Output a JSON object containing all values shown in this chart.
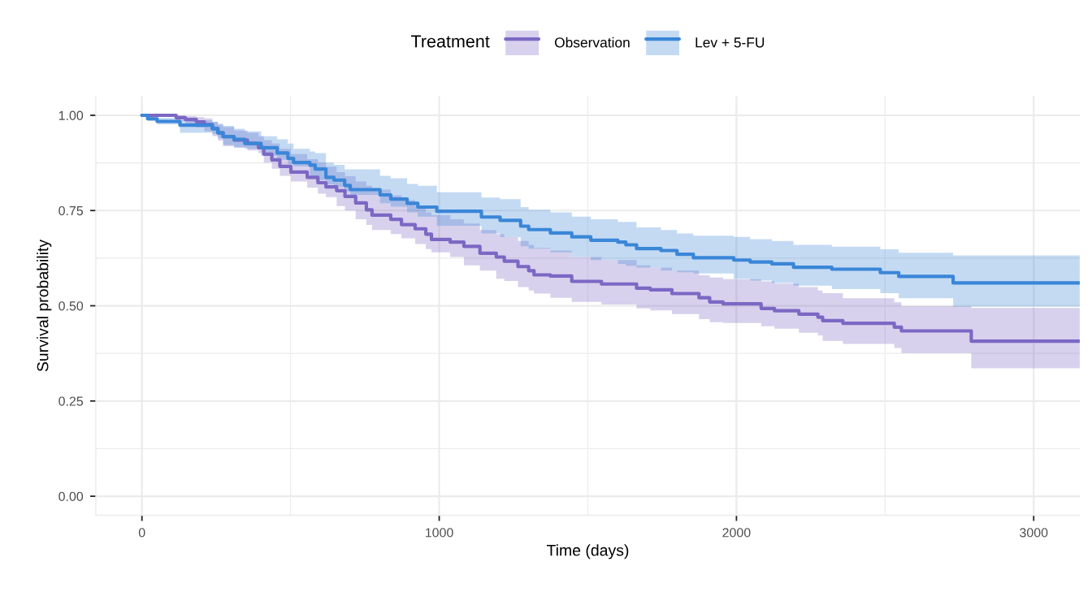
{
  "chart_data": {
    "type": "step",
    "xlabel": "Time (days)",
    "ylabel": "Survival probability",
    "legend_title": "Treatment",
    "series": [
      {
        "name": "Observation",
        "color": "#7b68c4",
        "x": [
          0,
          115,
          146,
          183,
          210,
          237,
          256,
          273,
          310,
          355,
          392,
          410,
          437,
          464,
          501,
          556,
          592,
          619,
          655,
          683,
          719,
          755,
          774,
          837,
          873,
          919,
          955,
          974,
          1037,
          1083,
          1137,
          1192,
          1219,
          1265,
          1301,
          1319,
          1374,
          1446,
          1546,
          1664,
          1710,
          1783,
          1874,
          1910,
          1955,
          2083,
          2128,
          2210,
          2274,
          2290,
          2358,
          2531,
          2555,
          2790,
          3155
        ],
        "values": [
          1.0,
          0.994,
          0.989,
          0.983,
          0.976,
          0.965,
          0.954,
          0.944,
          0.935,
          0.926,
          0.915,
          0.898,
          0.883,
          0.866,
          0.851,
          0.837,
          0.823,
          0.812,
          0.802,
          0.787,
          0.77,
          0.752,
          0.738,
          0.727,
          0.713,
          0.702,
          0.688,
          0.674,
          0.667,
          0.656,
          0.638,
          0.628,
          0.617,
          0.603,
          0.592,
          0.581,
          0.578,
          0.564,
          0.557,
          0.546,
          0.542,
          0.532,
          0.521,
          0.51,
          0.505,
          0.493,
          0.487,
          0.478,
          0.47,
          0.461,
          0.454,
          0.444,
          0.434,
          0.407,
          0.407
        ],
        "lower": [
          1.0,
          0.985,
          0.978,
          0.968,
          0.958,
          0.945,
          0.934,
          0.919,
          0.915,
          0.908,
          0.901,
          0.876,
          0.86,
          0.841,
          0.826,
          0.81,
          0.794,
          0.785,
          0.762,
          0.75,
          0.727,
          0.712,
          0.699,
          0.688,
          0.677,
          0.662,
          0.649,
          0.64,
          0.628,
          0.606,
          0.592,
          0.571,
          0.565,
          0.549,
          0.54,
          0.532,
          0.521,
          0.51,
          0.503,
          0.493,
          0.488,
          0.478,
          0.465,
          0.457,
          0.455,
          0.446,
          0.44,
          0.429,
          0.422,
          0.408,
          0.4,
          0.389,
          0.376,
          0.336,
          0.336
        ],
        "upper": [
          1.0,
          1.0,
          0.998,
          0.995,
          0.992,
          0.983,
          0.975,
          0.969,
          0.96,
          0.954,
          0.945,
          0.935,
          0.926,
          0.912,
          0.898,
          0.885,
          0.876,
          0.865,
          0.851,
          0.84,
          0.826,
          0.815,
          0.805,
          0.79,
          0.777,
          0.762,
          0.745,
          0.738,
          0.727,
          0.716,
          0.699,
          0.688,
          0.68,
          0.67,
          0.66,
          0.652,
          0.645,
          0.628,
          0.62,
          0.606,
          0.6,
          0.592,
          0.58,
          0.574,
          0.57,
          0.564,
          0.558,
          0.549,
          0.54,
          0.533,
          0.52,
          0.509,
          0.499,
          0.494,
          0.494
        ]
      },
      {
        "name": "Lev + 5-FU",
        "color": "#3a86d8",
        "x": [
          0,
          19,
          51,
          128,
          237,
          255,
          273,
          310,
          346,
          401,
          455,
          491,
          510,
          565,
          583,
          619,
          646,
          682,
          701,
          801,
          837,
          892,
          928,
          992,
          1142,
          1205,
          1274,
          1301,
          1374,
          1446,
          1510,
          1601,
          1628,
          1664,
          1746,
          1800,
          1855,
          1991,
          2046,
          2119,
          2192,
          2321,
          2484,
          2546,
          2729,
          3155
        ],
        "values": [
          1.0,
          0.991,
          0.984,
          0.974,
          0.965,
          0.954,
          0.944,
          0.937,
          0.926,
          0.915,
          0.901,
          0.887,
          0.876,
          0.869,
          0.859,
          0.837,
          0.83,
          0.816,
          0.805,
          0.791,
          0.78,
          0.769,
          0.759,
          0.748,
          0.733,
          0.724,
          0.709,
          0.7,
          0.691,
          0.681,
          0.672,
          0.667,
          0.66,
          0.65,
          0.645,
          0.635,
          0.626,
          0.62,
          0.615,
          0.61,
          0.601,
          0.596,
          0.587,
          0.577,
          0.56,
          0.56
        ],
        "lower": [
          1.0,
          0.985,
          0.976,
          0.954,
          0.951,
          0.94,
          0.922,
          0.916,
          0.912,
          0.894,
          0.883,
          0.872,
          0.866,
          0.84,
          0.83,
          0.819,
          0.812,
          0.8,
          0.791,
          0.769,
          0.76,
          0.745,
          0.734,
          0.71,
          0.69,
          0.68,
          0.656,
          0.65,
          0.64,
          0.628,
          0.62,
          0.61,
          0.605,
          0.6,
          0.592,
          0.588,
          0.585,
          0.571,
          0.566,
          0.56,
          0.553,
          0.544,
          0.533,
          0.52,
          0.498,
          0.498
        ],
        "upper": [
          1.0,
          0.997,
          0.993,
          0.987,
          0.983,
          0.978,
          0.972,
          0.965,
          0.958,
          0.945,
          0.937,
          0.926,
          0.912,
          0.905,
          0.901,
          0.876,
          0.87,
          0.858,
          0.858,
          0.841,
          0.835,
          0.82,
          0.815,
          0.798,
          0.784,
          0.78,
          0.759,
          0.752,
          0.745,
          0.734,
          0.727,
          0.72,
          0.72,
          0.706,
          0.699,
          0.69,
          0.684,
          0.681,
          0.675,
          0.67,
          0.66,
          0.655,
          0.648,
          0.639,
          0.632,
          0.632
        ]
      }
    ],
    "xlim": [
      -155,
      3155
    ],
    "xticks": [
      0,
      1000,
      2000,
      3000
    ],
    "ylim": [
      -0.05,
      1.05
    ],
    "yticks": [
      {
        "value": 0,
        "label": "0.00"
      },
      {
        "value": 0.25,
        "label": "0.25"
      },
      {
        "value": 0.5,
        "label": "0.50"
      },
      {
        "value": 0.75,
        "label": "0.75"
      },
      {
        "value": 1,
        "label": "1.00"
      }
    ],
    "grid": true,
    "legend": "top",
    "line_style": "solid"
  }
}
